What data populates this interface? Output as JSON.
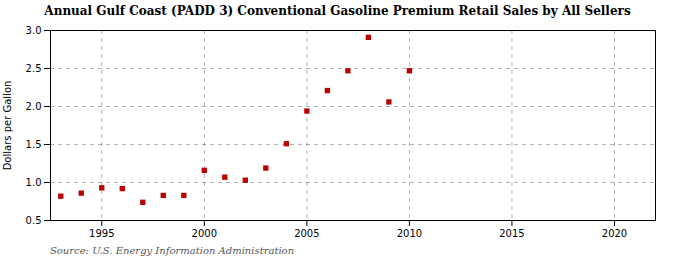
{
  "chart_data": {
    "type": "scatter",
    "title": "Annual Gulf Coast (PADD 3) Conventional Gasoline Premium Retail Sales by All Sellers",
    "y_label": "Dollars per Gallon",
    "annotation": "Source: U.S. Energy Information Administration",
    "color": "#bb0000",
    "marker": "square",
    "grid": true,
    "x": [
      1993,
      1994,
      1995,
      1996,
      1997,
      1998,
      1999,
      2000,
      2001,
      2002,
      2003,
      2004,
      2005,
      2006,
      2007,
      2008,
      2009,
      2010
    ],
    "values": [
      0.82,
      0.86,
      0.93,
      0.92,
      0.74,
      0.83,
      0.83,
      1.16,
      1.07,
      1.03,
      1.19,
      1.51,
      1.94,
      2.21,
      2.47,
      2.91,
      2.06,
      2.47
    ],
    "xlim": [
      1992.5,
      2022
    ],
    "xticks": [
      1995,
      2000,
      2005,
      2010,
      2015,
      2020
    ],
    "ylim": [
      0.5,
      3.0
    ],
    "yticks": [
      0.5,
      {
        "value": 1.0,
        "label": "1.0"
      },
      1.5,
      {
        "value": 2.0,
        "label": "2.0"
      },
      2.5,
      {
        "value": 3.0,
        "label": "3.0"
      }
    ]
  }
}
